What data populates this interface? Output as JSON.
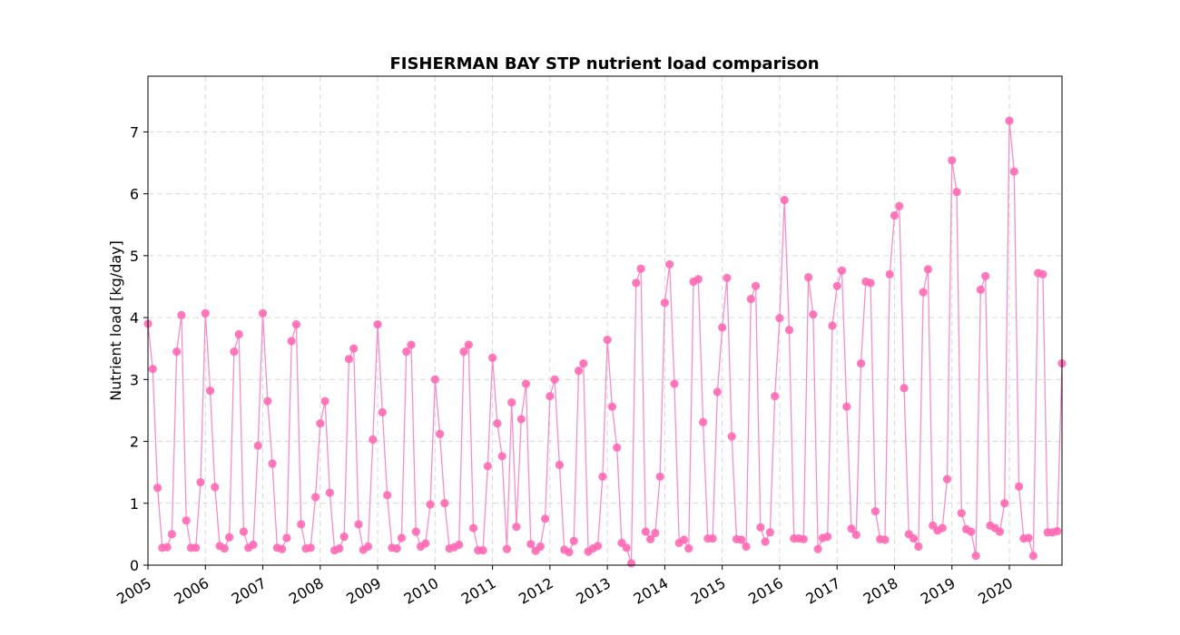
{
  "chart_data": {
    "type": "line",
    "title": "FISHERMAN BAY STP nutrient load comparison",
    "xlabel": "",
    "ylabel": "Nutrient load [kg/day]",
    "x_ticks": [
      "2005",
      "2006",
      "2007",
      "2008",
      "2009",
      "2010",
      "2011",
      "2012",
      "2013",
      "2014",
      "2015",
      "2016",
      "2017",
      "2018",
      "2019",
      "2020"
    ],
    "y_ticks": [
      "0",
      "1",
      "2",
      "3",
      "4",
      "5",
      "6",
      "7"
    ],
    "xlim": [
      "2005-01",
      "2020-12"
    ],
    "ylim": [
      0,
      7.9
    ],
    "grid": true,
    "marker": "circle",
    "colors": {
      "series": "#ff69b4",
      "line": "#f48fc9",
      "grid": "#d9d9d9"
    },
    "series": [
      {
        "x_start": "2005-01",
        "x_step": "1 month",
        "values": [
          3.9,
          3.17,
          1.25,
          0.28,
          0.29,
          0.5,
          3.45,
          4.04,
          0.72,
          0.28,
          0.28,
          1.34,
          4.07,
          2.82,
          1.26,
          0.31,
          0.27,
          0.45,
          3.45,
          3.73,
          0.54,
          0.28,
          0.33,
          1.93,
          4.07,
          2.65,
          1.64,
          0.28,
          0.26,
          0.44,
          3.62,
          3.89,
          0.66,
          0.27,
          0.28,
          1.1,
          2.29,
          2.65,
          1.17,
          0.24,
          0.27,
          0.46,
          3.33,
          3.5,
          0.66,
          0.25,
          0.3,
          2.03,
          3.89,
          2.47,
          1.13,
          0.28,
          0.27,
          0.44,
          3.45,
          3.56,
          0.54,
          0.3,
          0.35,
          0.98,
          3.0,
          2.12,
          1.0,
          0.27,
          0.29,
          0.33,
          3.45,
          3.56,
          0.6,
          0.24,
          0.24,
          1.6,
          3.35,
          2.29,
          1.76,
          0.26,
          2.63,
          0.62,
          2.36,
          2.93,
          0.34,
          0.23,
          0.3,
          0.75,
          2.73,
          3.0,
          1.62,
          0.25,
          0.21,
          0.39,
          3.14,
          3.26,
          0.22,
          0.27,
          0.31,
          1.43,
          3.64,
          2.56,
          1.9,
          0.36,
          0.28,
          0.03,
          4.56,
          4.79,
          0.54,
          0.42,
          0.52,
          1.43,
          4.24,
          4.86,
          2.93,
          0.36,
          0.41,
          0.27,
          4.58,
          4.62,
          2.31,
          0.43,
          0.43,
          2.8,
          3.84,
          4.64,
          2.08,
          0.42,
          0.41,
          0.3,
          4.3,
          4.51,
          0.61,
          0.38,
          0.53,
          2.73,
          3.99,
          5.9,
          3.8,
          0.43,
          0.43,
          0.42,
          4.65,
          4.05,
          0.26,
          0.44,
          0.46,
          3.87,
          4.51,
          4.76,
          2.56,
          0.59,
          0.49,
          3.26,
          4.58,
          4.56,
          0.87,
          0.42,
          0.41,
          4.7,
          5.65,
          5.8,
          2.86,
          0.5,
          0.43,
          0.3,
          4.41,
          4.78,
          0.64,
          0.56,
          0.6,
          1.39,
          6.54,
          6.03,
          0.84,
          0.58,
          0.54,
          0.15,
          4.45,
          4.67,
          0.64,
          0.6,
          0.54,
          1.0,
          7.18,
          6.36,
          1.27,
          0.43,
          0.44,
          0.15,
          4.72,
          4.7,
          0.53,
          0.53,
          0.55,
          3.26
        ]
      }
    ]
  }
}
